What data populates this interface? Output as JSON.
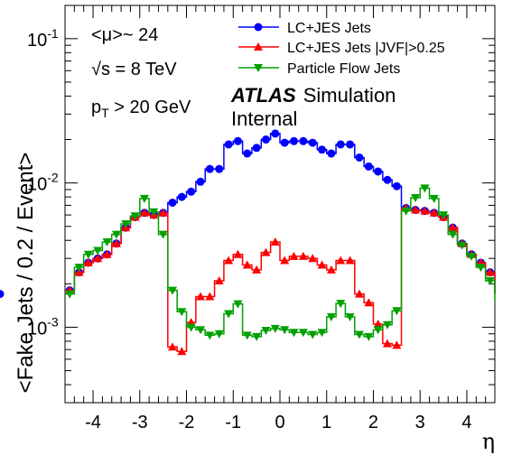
{
  "chart_data": {
    "type": "line",
    "title": "",
    "xlabel": "η",
    "ylabel": "<Fake Jets / 0.2 / Event>",
    "xlim": [
      -4.6,
      4.6
    ],
    "ylim": [
      0.0003,
      0.17
    ],
    "yscale": "log",
    "xticks": [
      -4,
      -3,
      -2,
      -1,
      0,
      1,
      2,
      3,
      4
    ],
    "xtick_labels": [
      "-4",
      "-3",
      "-2",
      "-1",
      "0",
      "1",
      "2",
      "3",
      "4"
    ],
    "yticks": [
      0.001,
      0.01,
      0.1
    ],
    "ytick_labels": [
      {
        "base": "10",
        "exp": "-3"
      },
      {
        "base": "10",
        "exp": "-2"
      },
      {
        "base": "10",
        "exp": "-1"
      }
    ],
    "bin_edges": [
      -4.6,
      -4.4,
      -4.2,
      -4.0,
      -3.8,
      -3.6,
      -3.4,
      -3.2,
      -3.0,
      -2.8,
      -2.6,
      -2.4,
      -2.2,
      -2.0,
      -1.8,
      -1.6,
      -1.4,
      -1.2,
      -1.0,
      -0.8,
      -0.6,
      -0.4,
      -0.2,
      0.0,
      0.2,
      0.4,
      0.6,
      0.8,
      1.0,
      1.2,
      1.4,
      1.6,
      1.8,
      2.0,
      2.2,
      2.4,
      2.6,
      2.8,
      3.0,
      3.2,
      3.4,
      3.6,
      3.8,
      4.0,
      4.2,
      4.4,
      4.6
    ],
    "series": [
      {
        "name": "LC+JES Jets",
        "color": "#0000ff",
        "marker": "circle",
        "values": [
          0.0018,
          0.0024,
          0.0028,
          0.003,
          0.0032,
          0.0038,
          0.0049,
          0.0058,
          0.0062,
          0.006,
          0.0062,
          0.0073,
          0.008,
          0.0087,
          0.0102,
          0.0125,
          0.0125,
          0.0185,
          0.0195,
          0.016,
          0.0175,
          0.02,
          0.022,
          0.019,
          0.0195,
          0.0195,
          0.019,
          0.017,
          0.016,
          0.0185,
          0.0185,
          0.015,
          0.013,
          0.012,
          0.0105,
          0.0095,
          0.0067,
          0.0065,
          0.0064,
          0.0062,
          0.0058,
          0.0049,
          0.0038,
          0.0032,
          0.0028,
          0.0024,
          0.0017
        ]
      },
      {
        "name": "LC+JES Jets |JVF|>0.25",
        "color": "#ff0000",
        "marker": "triangle-up",
        "values": [
          0.0018,
          0.0024,
          0.0028,
          0.003,
          0.0032,
          0.0038,
          0.0049,
          0.0058,
          0.0062,
          0.006,
          0.0062,
          0.00073,
          0.00068,
          0.00108,
          0.00163,
          0.00163,
          0.0021,
          0.0029,
          0.0032,
          0.0027,
          0.0025,
          0.0033,
          0.0039,
          0.0029,
          0.0031,
          0.0031,
          0.003,
          0.0027,
          0.0025,
          0.0029,
          0.0029,
          0.0017,
          0.00148,
          0.00105,
          0.00077,
          0.00075,
          0.0067,
          0.0065,
          0.0064,
          0.0062,
          0.0058,
          0.0049,
          0.0038,
          0.0032,
          0.0028,
          0.0024,
          0.0017
        ]
      },
      {
        "name": "Particle Flow Jets",
        "color": "#00a000",
        "marker": "triangle-down",
        "values": [
          0.0017,
          0.0026,
          0.0032,
          0.0034,
          0.0039,
          0.0044,
          0.0052,
          0.0059,
          0.0078,
          0.0063,
          0.0044,
          0.0018,
          0.00128,
          0.001,
          0.00096,
          0.00088,
          0.0009,
          0.00124,
          0.00145,
          0.00088,
          0.00086,
          0.00095,
          0.00098,
          0.00096,
          0.00092,
          0.00092,
          0.00089,
          0.00092,
          0.00118,
          0.00146,
          0.00118,
          0.00089,
          0.00086,
          0.00096,
          0.00104,
          0.0013,
          0.0064,
          0.0079,
          0.0092,
          0.0078,
          0.006,
          0.0044,
          0.0037,
          0.0031,
          0.0026,
          0.0021,
          0.0015
        ]
      }
    ],
    "legend": {
      "placement": "top-right"
    },
    "annotations": {
      "mu": "<μ>~ 24",
      "sqrt_s_sym": "√s",
      "sqrt_s_rest": " = 8 TeV",
      "pt_p": "p",
      "pt_sub": "T",
      "pt_rest": " > 20 GeV",
      "atlas": "ATLAS",
      "simulation": "Simulation",
      "internal": "Internal"
    }
  }
}
